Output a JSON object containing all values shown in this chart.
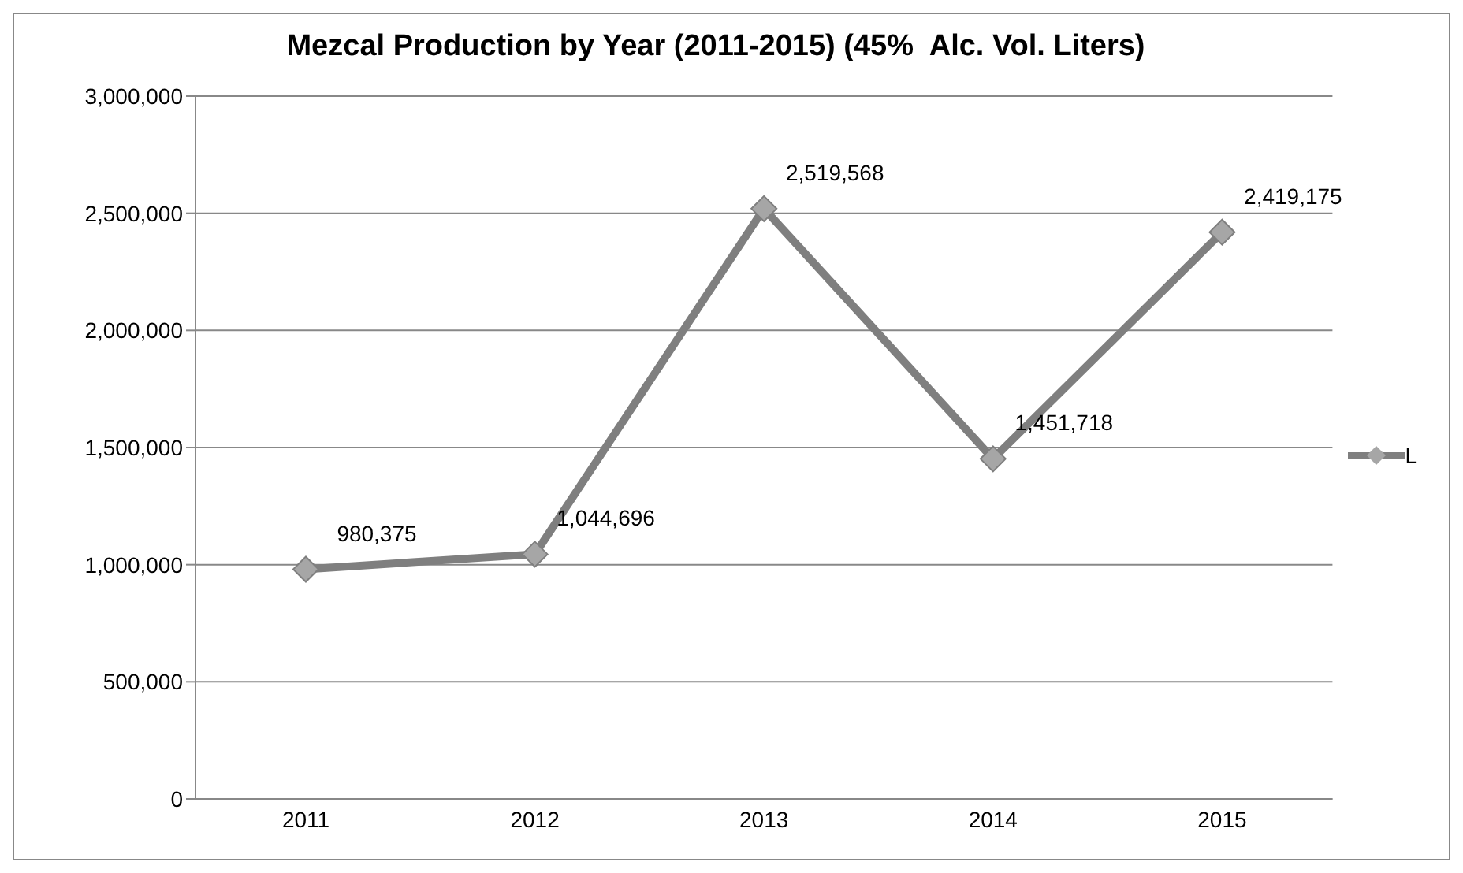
{
  "chart_data": {
    "type": "line",
    "title": "Mezcal Production by Year (2011-2015) (45%  Alc. Vol. Liters)",
    "categories": [
      "2011",
      "2012",
      "2013",
      "2014",
      "2015"
    ],
    "series": [
      {
        "name": "L",
        "color": "#7f7f7f",
        "values": [
          980375,
          1044696,
          2519568,
          1451718,
          2419175
        ],
        "value_labels": [
          "980,375",
          "1,044,696",
          "2,519,568",
          "1,451,718",
          "2,419,175"
        ]
      }
    ],
    "ylim": [
      0,
      3000000
    ],
    "yticks": [
      0,
      {
        "value": 500000,
        "label": "500,000"
      },
      {
        "value": 1000000,
        "label": "1,000,000"
      },
      {
        "value": 1500000,
        "label": "1,500,000"
      },
      {
        "value": 2000000,
        "label": "2,000,000"
      },
      {
        "value": 2500000,
        "label": "2,500,000"
      },
      {
        "value": 3000000,
        "label": "3,000,000"
      }
    ],
    "grid": "y",
    "legend": "right",
    "marker": "diamond",
    "line_style": "solid"
  }
}
